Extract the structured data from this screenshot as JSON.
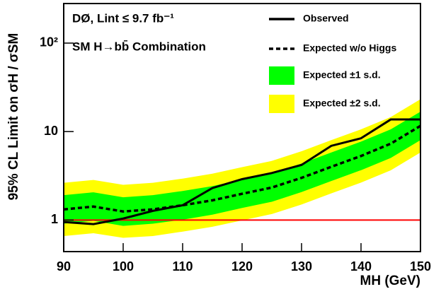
{
  "chart_data": {
    "type": "line",
    "title": [
      "DØ, Lint ≤ 9.7 fb⁻¹",
      "SM H→bb̄ Combination"
    ],
    "xlabel": "MH (GeV)",
    "ylabel": "95% CL Limit on σH / σSM",
    "x": [
      90,
      95,
      100,
      105,
      110,
      115,
      120,
      125,
      130,
      135,
      140,
      145,
      150
    ],
    "series": [
      {
        "name": "Expected ±2 s.d.",
        "color": "#ffff00",
        "band": true,
        "lower": [
          0.66,
          0.71,
          0.63,
          0.66,
          0.74,
          0.84,
          0.99,
          1.17,
          1.5,
          2.0,
          2.65,
          3.65,
          5.8
        ],
        "upper": [
          2.64,
          2.84,
          2.5,
          2.64,
          2.94,
          3.34,
          3.96,
          4.66,
          6.0,
          8.0,
          10.6,
          14.6,
          23.2
        ]
      },
      {
        "name": "Expected ±1 s.d.",
        "color": "#00ff00",
        "band": true,
        "lower": [
          0.91,
          0.98,
          0.86,
          0.91,
          1.01,
          1.15,
          1.37,
          1.61,
          2.07,
          2.76,
          3.66,
          5.03,
          8.0
        ],
        "upper": [
          1.91,
          2.06,
          1.81,
          1.91,
          2.13,
          2.42,
          2.87,
          3.38,
          4.35,
          5.8,
          7.7,
          10.6,
          16.8
        ]
      },
      {
        "name": "Expected w/o Higgs",
        "color": "#000000",
        "dashed": true,
        "values": [
          1.32,
          1.42,
          1.25,
          1.32,
          1.47,
          1.67,
          1.98,
          2.33,
          3.0,
          4.0,
          5.3,
          7.3,
          11.6
        ]
      },
      {
        "name": "Observed",
        "color": "#000000",
        "values": [
          0.95,
          0.9,
          1.04,
          1.27,
          1.47,
          2.3,
          2.9,
          3.4,
          4.2,
          6.9,
          8.4,
          13.7,
          13.7
        ]
      }
    ],
    "hline": 1,
    "hline_color": "#ff0000",
    "xlim": [
      90,
      150
    ],
    "xticks": [
      90,
      100,
      110,
      120,
      130,
      140,
      150
    ],
    "ylim": [
      0.44,
      280
    ],
    "ylog": true,
    "yticks": [
      1,
      10,
      {
        "value": 100,
        "label": "10²"
      }
    ]
  }
}
